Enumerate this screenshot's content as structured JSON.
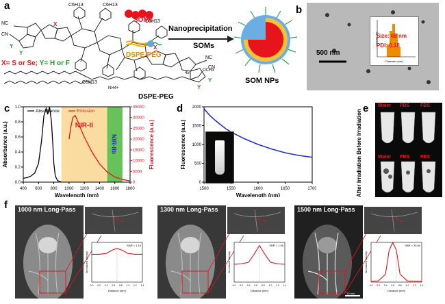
{
  "panel_a": {
    "label": "a",
    "scheme_labels": {
      "soms": "SOMs",
      "soms_legend": "SOMs",
      "dspe_legend": "DSPE-PEG",
      "dspe_structure": "DSPE-PEG",
      "arrow": "Nanoprecipitation",
      "product": "SOM NPs",
      "substitution": "X= S or Se; Y= H or F",
      "sub_x": "X= S or Se;",
      "sub_y": " Y= H or F",
      "atom_cn1": "NC",
      "atom_cn2": "CN",
      "atom_nc2": "NC",
      "atom_cn3": "CN",
      "c6h13_a": "C6H13",
      "c6h13_b": "C6H13",
      "c6h13_c": "C6H13",
      "c6h13_d": "C6H13",
      "x_a": "X",
      "x_b": "X",
      "y_a": "Y",
      "y_b": "Y",
      "y_c": "Y",
      "y_d": "Y",
      "peg_n": "45",
      "och3": "OCH3",
      "nh4": "NH4+"
    }
  },
  "panel_b": {
    "label": "b",
    "scale": "500 nm",
    "size": "Size: 68 nm",
    "pdi": "PDI: 0.18",
    "xaxis": "Diameter (nm)",
    "yaxis": "Intensity (%)"
  },
  "panel_c": {
    "label": "c",
    "nir2": "NIR-II",
    "nir2b": "NIR-IIb"
  },
  "panel_d": {
    "label": "d"
  },
  "panel_e": {
    "label": "e",
    "col_labels": [
      "Water",
      "PBS",
      "FBS"
    ],
    "row_labels": [
      "Water",
      "PBS",
      "FBS"
    ],
    "side_title": "After Irradiation Before Irradiation"
  },
  "panel_f": {
    "label": "f",
    "panels": [
      {
        "title": "1000 nm Long-Pass",
        "sbr": "SBR = 1.18"
      },
      {
        "title": "1300 nm Long-Pass",
        "sbr": "SBR = 1.55"
      },
      {
        "title": "1500 nm Long-Pass",
        "sbr": "SBR = 25.80"
      }
    ],
    "xlabel": "Distance (mm)",
    "ylabel": "Normalized Intensity",
    "scale_label": "10 mm",
    "xticks": [
      "0.0",
      "0.2",
      "0.4",
      "0.6",
      "0.8",
      "1.0",
      "1.2",
      "1.4"
    ]
  },
  "colors": {
    "absorbance": "#000000",
    "emission": "#e8141b",
    "fret_line": "#1f2bd6",
    "nir_shade": "#fbdca0",
    "nir2b_shade": "#67c25a",
    "red_text": "#e8141b",
    "green_text": "#1f9a25",
    "orange_text": "#f08a00"
  },
  "chart_data": [
    {
      "type": "line",
      "panel": "c",
      "xlabel": "Wavelength (nm)",
      "ylabel": "Absorbance (a.u.)",
      "y2label": "Fluorescence (a.u.)",
      "xlim": [
        400,
        1800
      ],
      "ylim": [
        0,
        1.0
      ],
      "y2lim": [
        0,
        35000
      ],
      "xticks": [
        400,
        600,
        800,
        1000,
        1200,
        1400,
        1600,
        1800
      ],
      "yticks": [
        0,
        0.2,
        0.4,
        0.6,
        0.8,
        1.0
      ],
      "y2ticks": [
        0,
        5000,
        10000,
        15000,
        20000,
        25000,
        30000,
        35000
      ],
      "legend": "top-left",
      "series": [
        {
          "name": "Absorbance",
          "axis": "left",
          "x": [
            400,
            450,
            500,
            550,
            600,
            640,
            670,
            700,
            720,
            745,
            770,
            790,
            800,
            820,
            850,
            900
          ],
          "y": [
            0.05,
            0.06,
            0.08,
            0.12,
            0.25,
            0.55,
            0.88,
            0.98,
            0.9,
            1.0,
            0.8,
            0.45,
            0.25,
            0.08,
            0.02,
            0.0
          ]
        },
        {
          "name": "Emission",
          "axis": "right",
          "x": [
            1000,
            1020,
            1050,
            1080,
            1100,
            1150,
            1200,
            1300,
            1400,
            1500,
            1600,
            1700,
            1800
          ],
          "y": [
            20000,
            25000,
            30000,
            31000,
            29500,
            25000,
            21000,
            14000,
            8500,
            4700,
            2400,
            1200,
            600
          ]
        }
      ]
    },
    {
      "type": "line",
      "panel": "d",
      "xlabel": "Wavelength (nm)",
      "ylabel": "Fluorescence (a.u.)",
      "xlim": [
        1500,
        1700
      ],
      "ylim": [
        0,
        2000
      ],
      "xticks": [
        1500,
        1550,
        1600,
        1650,
        1700
      ],
      "yticks": [
        0,
        500,
        1000,
        1500,
        2000
      ],
      "series": [
        {
          "x": [
            1500,
            1510,
            1520,
            1530,
            1540,
            1550,
            1575,
            1600,
            1625,
            1650,
            1675,
            1700
          ],
          "y": [
            1950,
            1780,
            1650,
            1530,
            1420,
            1330,
            1150,
            1000,
            880,
            780,
            710,
            660
          ]
        }
      ]
    },
    {
      "type": "line",
      "panel": "f",
      "xlabel": "Distance (mm)",
      "ylabel": "Normalized Intensity",
      "series": [
        {
          "name": "SBR = 1.18",
          "x": [
            0,
            0.2,
            0.4,
            0.55,
            0.7,
            0.85,
            1.0,
            1.2,
            1.4
          ],
          "y": [
            0.7,
            0.7,
            0.72,
            0.8,
            0.85,
            0.8,
            0.72,
            0.7,
            0.7
          ]
        },
        {
          "name": "SBR = 1.55",
          "x": [
            0,
            0.2,
            0.4,
            0.55,
            0.7,
            0.85,
            1.0,
            1.2,
            1.4
          ],
          "y": [
            0.45,
            0.46,
            0.5,
            0.7,
            0.92,
            0.7,
            0.5,
            0.46,
            0.45
          ]
        },
        {
          "name": "SBR = 25.80",
          "x": [
            0,
            0.2,
            0.4,
            0.5,
            0.6,
            0.7,
            0.8,
            1.0,
            1.2,
            1.4
          ],
          "y": [
            0.02,
            0.03,
            0.2,
            0.8,
            1.0,
            0.8,
            0.2,
            0.03,
            0.02,
            0.02
          ]
        }
      ]
    }
  ]
}
